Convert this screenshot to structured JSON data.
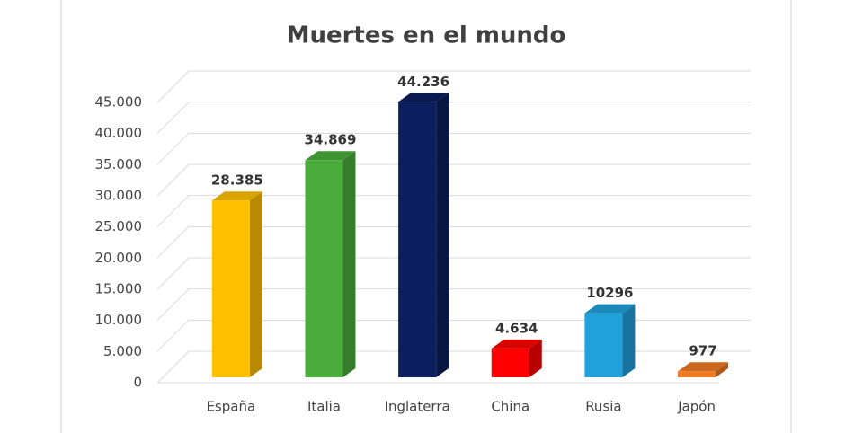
{
  "chart_data": {
    "type": "bar3d",
    "title": "Muertes en el mundo",
    "categories": [
      "España",
      "Italia",
      "Inglaterra",
      "China",
      "Rusia",
      "Japón"
    ],
    "values": [
      28385,
      34869,
      44236,
      4634,
      10296,
      977
    ],
    "value_labels": [
      "28.385",
      "34.869",
      "44.236",
      "4.634",
      "10296",
      "977"
    ],
    "colors": [
      "#ffc000",
      "#4aad3b",
      "#0b1f5e",
      "#ff0000",
      "#21a1dc",
      "#f07a22"
    ],
    "ylim": [
      0,
      45000
    ],
    "yticks": [
      0,
      {
        "value": 5000,
        "label": "5.000"
      },
      {
        "value": 10000,
        "label": "10.000"
      },
      {
        "value": 15000,
        "label": "15.000"
      },
      {
        "value": 20000,
        "label": "20.000"
      },
      {
        "value": 25000,
        "label": "25.000"
      },
      {
        "value": 30000,
        "label": "30.000"
      },
      {
        "value": 35000,
        "label": "35.000"
      },
      {
        "value": 40000,
        "label": "40.000"
      },
      {
        "value": 45000,
        "label": "45.000"
      }
    ],
    "grid": true
  }
}
